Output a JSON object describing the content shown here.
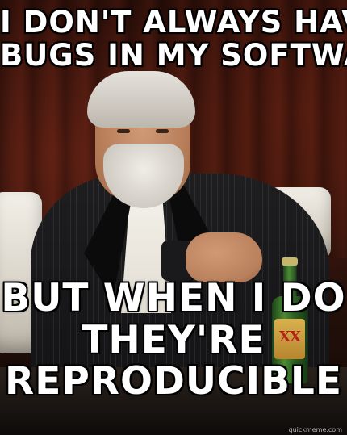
{
  "meme": {
    "top_text": {
      "line1": "I DON'T ALWAYS HAVE",
      "line2": "BUGS IN MY SOFTWARE"
    },
    "bottom_text": {
      "line1": "BUT WHEN I DO",
      "line2": "THEY'RE",
      "line3": "REPRODUCIBLE"
    },
    "watermark": "quickmeme.com",
    "bottle_label": "XX"
  }
}
